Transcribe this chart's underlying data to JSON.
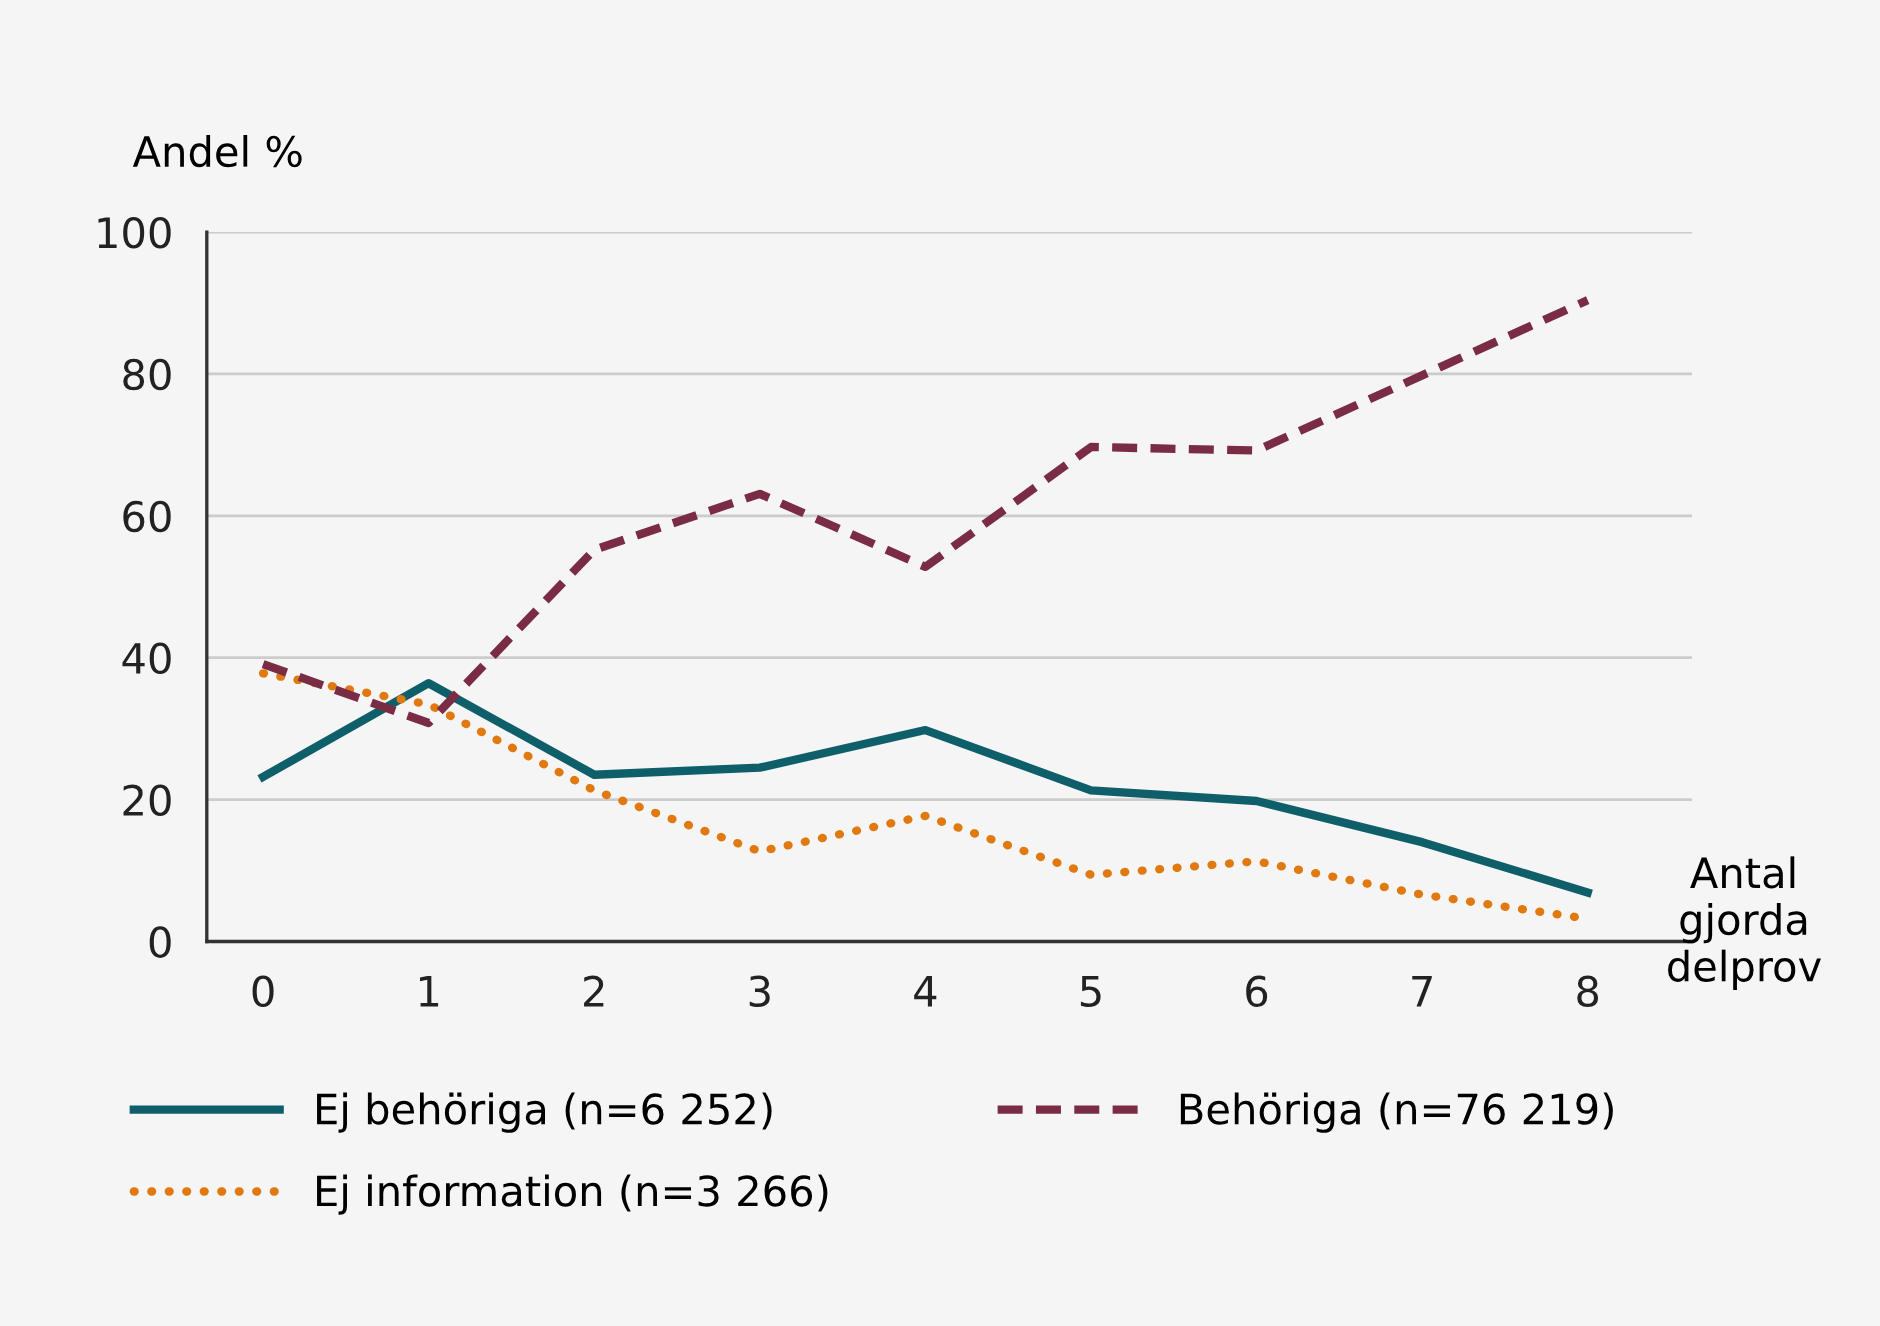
{
  "chart_data": {
    "type": "line",
    "xlabel": "Antal\ngjorda\ndelprov",
    "ylabel": "Andel %",
    "x": [
      0,
      1,
      2,
      3,
      4,
      5,
      6,
      7,
      8
    ],
    "series": [
      {
        "name": "Ej behöriga (n=6 252)",
        "color": "#0f5f6b",
        "line_style": "solid",
        "values": [
          23.2,
          36.4,
          23.5,
          24.5,
          29.8,
          21.3,
          19.8,
          14.0,
          6.9
        ]
      },
      {
        "name": "Ej information (n=3 266)",
        "color": "#e07a10",
        "line_style": "dotted",
        "values": [
          37.8,
          33.4,
          21.3,
          12.7,
          17.7,
          9.4,
          11.3,
          6.6,
          3.2
        ]
      },
      {
        "name": "Behöriga (n=76 219)",
        "color": "#7b2c45",
        "line_style": "dashed",
        "values": [
          39.1,
          30.8,
          55.2,
          63.1,
          52.8,
          69.7,
          69.2,
          79.8,
          90.4
        ]
      }
    ],
    "xlim": [
      -0.34,
      8.63
    ],
    "xticks": [
      0,
      1,
      2,
      3,
      4,
      5,
      6,
      7,
      8
    ],
    "ylim": [
      0,
      100
    ],
    "yticks": [
      0,
      20,
      40,
      60,
      80,
      100
    ],
    "grid": "y",
    "legend": "bottom",
    "marker": "none"
  }
}
